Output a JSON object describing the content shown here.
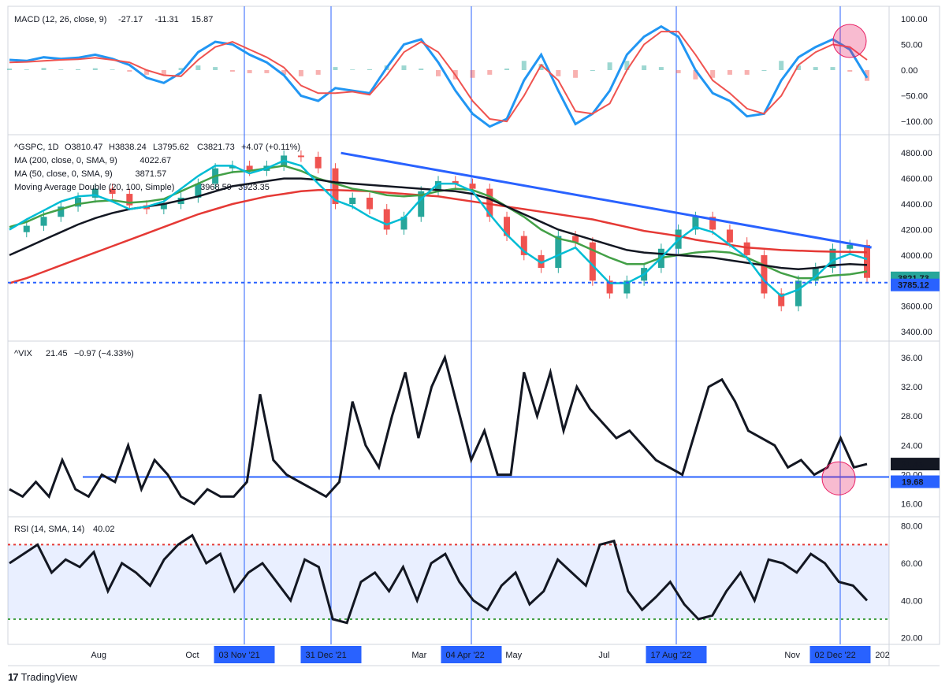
{
  "brand": {
    "name": "TradingView",
    "logo_icon": "tradingview-logo-icon"
  },
  "chart_data": [
    {
      "type": "line",
      "title": "MACD (12, 26, close, 9)",
      "legend_values": [
        "-27.17",
        "-11.31",
        "15.87"
      ],
      "legend_colors": [
        "#e53935",
        "#2962ff",
        "#e53935"
      ],
      "yticks": [
        "100.00",
        "50.00",
        "0.00",
        "−50.00",
        "−100.00"
      ],
      "ylim": [
        -115,
        115
      ],
      "series": [
        {
          "color": "#2196f3",
          "values": [
            20,
            18,
            25,
            22,
            24,
            30,
            22,
            10,
            -15,
            -25,
            -5,
            35,
            55,
            50,
            30,
            15,
            -10,
            -50,
            -60,
            -35,
            -40,
            -45,
            5,
            50,
            60,
            15,
            -40,
            -85,
            -110,
            -95,
            -20,
            30,
            -40,
            -105,
            -85,
            -40,
            30,
            65,
            85,
            65,
            0,
            -45,
            -60,
            -90,
            -85,
            -20,
            25,
            45,
            60,
            40,
            -15
          ]
        },
        {
          "color": "#ef5350",
          "values": [
            15,
            16,
            18,
            20,
            21,
            24,
            20,
            15,
            0,
            -10,
            -12,
            20,
            45,
            55,
            40,
            25,
            5,
            -30,
            -45,
            -45,
            -42,
            -48,
            -10,
            35,
            55,
            35,
            -10,
            -60,
            -95,
            -100,
            -50,
            10,
            -20,
            -80,
            -85,
            -65,
            0,
            50,
            75,
            75,
            30,
            -20,
            -45,
            -75,
            -85,
            -50,
            10,
            35,
            50,
            45,
            20
          ]
        }
      ]
    },
    {
      "type": "line",
      "title": "^GSPC, 1D",
      "legend": {
        "open": "O3810.47",
        "high": "H3838.24",
        "low": "L3795.62",
        "close": "C3821.73",
        "change": "+4.07 (+0.11%)"
      },
      "indicators": [
        {
          "label": "MA (200, close, 0, SMA, 9)",
          "value": "4022.67",
          "color": "#e53935"
        },
        {
          "label": "MA (50, close, 0, SMA, 9)",
          "value": "3871.57",
          "color": "#43a047"
        },
        {
          "label": "Moving Average Double (20, 100, Simple)",
          "value": "3968.59",
          "value2": "3923.35",
          "color": "#00acc1",
          "color2": "#131722"
        }
      ],
      "yticks": [
        "4800.00",
        "4600.00",
        "4400.00",
        "4200.00",
        "4000.00",
        "3800.00",
        "3600.00",
        "3400.00"
      ],
      "ylim": [
        3370,
        4900
      ],
      "price_label": "3821.73",
      "level_label": "3785.12",
      "level": 3785.12,
      "trendline": [
        [
          0.378,
          4800
        ],
        [
          0.98,
          4060
        ]
      ],
      "series": [
        {
          "name": "price",
          "color": "#26a69a",
          "values": [
            4180,
            4230,
            4300,
            4380,
            4450,
            4520,
            4480,
            4390,
            4360,
            4400,
            4450,
            4560,
            4680,
            4700,
            4660,
            4700,
            4780,
            4770,
            4680,
            4400,
            4450,
            4360,
            4200,
            4300,
            4500,
            4580,
            4560,
            4520,
            4300,
            4150,
            4000,
            3900,
            4150,
            4100,
            3800,
            3700,
            3800,
            3900,
            4050,
            4200,
            4300,
            4200,
            4100,
            4000,
            3700,
            3600,
            3800,
            3900,
            4050,
            4080,
            3822
          ]
        },
        {
          "name": "ma200",
          "color": "#e53935",
          "values": [
            3780,
            3820,
            3870,
            3920,
            3970,
            4020,
            4070,
            4120,
            4170,
            4220,
            4270,
            4320,
            4360,
            4400,
            4430,
            4460,
            4480,
            4500,
            4510,
            4510,
            4505,
            4500,
            4490,
            4480,
            4470,
            4460,
            4440,
            4420,
            4400,
            4380,
            4360,
            4340,
            4320,
            4300,
            4280,
            4250,
            4220,
            4190,
            4170,
            4150,
            4120,
            4100,
            4080,
            4060,
            4050,
            4040,
            4035,
            4030,
            4027,
            4025,
            4023
          ]
        },
        {
          "name": "ma50",
          "color": "#43a047",
          "values": [
            4220,
            4260,
            4320,
            4360,
            4400,
            4420,
            4430,
            4410,
            4420,
            4440,
            4500,
            4560,
            4620,
            4650,
            4660,
            4680,
            4700,
            4660,
            4600,
            4560,
            4520,
            4500,
            4470,
            4460,
            4470,
            4500,
            4520,
            4510,
            4460,
            4380,
            4300,
            4200,
            4130,
            4100,
            4040,
            3980,
            3930,
            3930,
            3980,
            4000,
            4020,
            4030,
            4020,
            3980,
            3920,
            3860,
            3820,
            3820,
            3840,
            3850,
            3872
          ]
        },
        {
          "name": "ma100",
          "color": "#131722",
          "values": [
            4000,
            4060,
            4120,
            4180,
            4240,
            4290,
            4330,
            4360,
            4380,
            4400,
            4430,
            4460,
            4500,
            4540,
            4560,
            4580,
            4600,
            4600,
            4590,
            4570,
            4560,
            4550,
            4540,
            4530,
            4520,
            4510,
            4500,
            4480,
            4440,
            4380,
            4320,
            4260,
            4200,
            4160,
            4120,
            4080,
            4040,
            4020,
            4010,
            4000,
            3990,
            3980,
            3960,
            3940,
            3920,
            3900,
            3890,
            3900,
            3920,
            3930,
            3923
          ]
        },
        {
          "name": "ma20",
          "color": "#00bcd4",
          "values": [
            4200,
            4280,
            4350,
            4420,
            4460,
            4470,
            4420,
            4360,
            4380,
            4420,
            4520,
            4620,
            4700,
            4700,
            4640,
            4680,
            4740,
            4700,
            4560,
            4430,
            4380,
            4300,
            4240,
            4290,
            4440,
            4560,
            4560,
            4500,
            4320,
            4160,
            4030,
            3940,
            4000,
            4060,
            3920,
            3780,
            3780,
            3850,
            3980,
            4120,
            4220,
            4180,
            4080,
            3980,
            3800,
            3680,
            3730,
            3830,
            3960,
            4010,
            3969
          ]
        }
      ]
    },
    {
      "type": "line",
      "title": "^VIX",
      "legend": {
        "last": "21.45",
        "change": "−0.97 (−4.33%)"
      },
      "yticks": [
        "36.00",
        "32.00",
        "28.00",
        "24.00",
        "20.00",
        "16.00"
      ],
      "ylim": [
        15,
        37.5
      ],
      "price_label": "21.45",
      "level_label": "19.68",
      "level": 19.68,
      "series": [
        {
          "name": "VIX",
          "color": "#131722",
          "values": [
            18,
            17,
            19,
            17,
            22,
            18,
            17,
            20,
            19,
            24,
            18,
            22,
            20,
            17,
            16,
            18,
            17,
            17,
            19,
            31,
            22,
            20,
            19,
            18,
            17,
            19,
            30,
            24,
            21,
            28,
            34,
            25,
            32,
            36,
            29,
            22,
            26,
            20,
            20,
            34,
            28,
            34,
            26,
            32,
            29,
            27,
            25,
            26,
            24,
            22,
            21,
            20,
            26,
            32,
            33,
            30,
            26,
            25,
            24,
            21,
            22,
            20,
            21,
            25,
            21,
            21.45
          ]
        }
      ]
    },
    {
      "type": "line",
      "title": "RSI (14, SMA, 14)",
      "legend": {
        "value": "40.02"
      },
      "yticks": [
        "80.00",
        "60.00",
        "40.00",
        "20.00"
      ],
      "ylim": [
        19,
        82
      ],
      "upper": 70,
      "lower": 30,
      "series": [
        {
          "name": "RSI",
          "color": "#131722",
          "values": [
            60,
            65,
            70,
            55,
            62,
            58,
            66,
            45,
            60,
            55,
            48,
            62,
            70,
            75,
            60,
            65,
            45,
            55,
            60,
            50,
            40,
            62,
            58,
            30,
            28,
            50,
            55,
            45,
            58,
            40,
            60,
            65,
            50,
            40,
            35,
            48,
            55,
            38,
            45,
            62,
            55,
            48,
            70,
            72,
            45,
            35,
            42,
            50,
            38,
            30,
            32,
            45,
            55,
            40,
            62,
            60,
            55,
            65,
            60,
            50,
            48,
            40
          ]
        }
      ]
    }
  ],
  "x_axis": {
    "labels": [
      {
        "text": "Aug",
        "highlight": false
      },
      {
        "text": "Oct",
        "highlight": false
      },
      {
        "text": "03 Nov '21",
        "highlight": true
      },
      {
        "text": "31 Dec '21",
        "highlight": true
      },
      {
        "text": "Mar",
        "highlight": false
      },
      {
        "text": "04 Apr '22",
        "highlight": true
      },
      {
        "text": "May",
        "highlight": false
      },
      {
        "text": "Jul",
        "highlight": false
      },
      {
        "text": "17 Aug '22",
        "highlight": true
      },
      {
        "text": "Nov",
        "highlight": false
      },
      {
        "text": "02 Dec '22",
        "highlight": true
      },
      {
        "text": "202",
        "highlight": false
      }
    ]
  }
}
